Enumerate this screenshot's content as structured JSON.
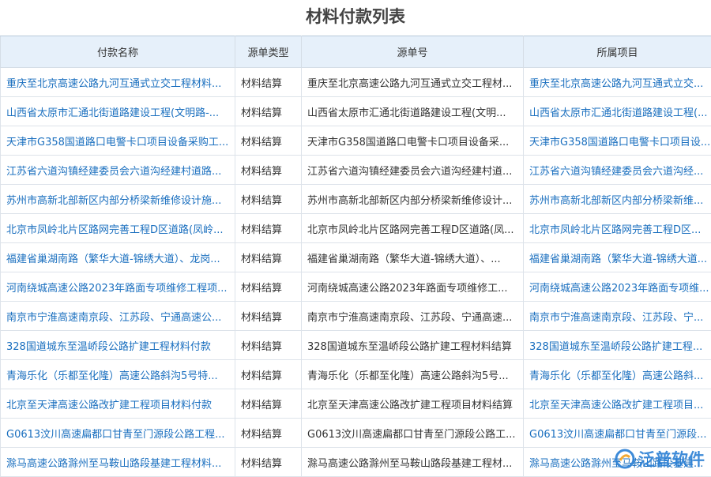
{
  "header": {
    "title": "材料付款列表"
  },
  "table": {
    "columns": [
      "付款名称",
      "源单类型",
      "源单号",
      "所属项目"
    ],
    "rows": [
      [
        "重庆至北京高速公路九河互通式立交工程材料...",
        "材料结算",
        "重庆至北京高速公路九河互通式立交工程材...",
        "重庆至北京高速公路九河互通式立交..."
      ],
      [
        "山西省太原市汇通北街道路建设工程(文明路-...",
        "材料结算",
        "山西省太原市汇通北街道路建设工程(文明...",
        "山西省太原市汇通北街道路建设工程(..."
      ],
      [
        "天津市G358国道路口电警卡口项目设备采购工...",
        "材料结算",
        "天津市G358国道路口电警卡口项目设备采...",
        "天津市G358国道路口电警卡口项目设..."
      ],
      [
        "江苏省六道沟镇经建委员会六道沟经建村道路...",
        "材料结算",
        "江苏省六道沟镇经建委员会六道沟经建村道...",
        "江苏省六道沟镇经建委员会六道沟经..."
      ],
      [
        "苏州市高新北部新区内部分桥梁新维修设计施...",
        "材料结算",
        "苏州市高新北部新区内部分桥梁新维修设计...",
        "苏州市高新北部新区内部分桥梁新维..."
      ],
      [
        "北京市凤岭北片区路网完善工程D区道路(凤岭...",
        "材料结算",
        "北京市凤岭北片区路网完善工程D区道路(凤...",
        "北京市凤岭北片区路网完善工程D区..."
      ],
      [
        "福建省巢湖南路（繁华大道-锦绣大道）、龙岗...",
        "材料结算",
        "福建省巢湖南路（繁华大道-锦绣大道）、...",
        "福建省巢湖南路（繁华大道-锦绣大道..."
      ],
      [
        "河南绕城高速公路2023年路面专项维修工程项...",
        "材料结算",
        "河南绕城高速公路2023年路面专项维修工...",
        "河南绕城高速公路2023年路面专项维..."
      ],
      [
        "南京市宁淮高速南京段、江苏段、宁通高速公...",
        "材料结算",
        "南京市宁淮高速南京段、江苏段、宁通高速...",
        "南京市宁淮高速南京段、江苏段、宁..."
      ],
      [
        "328国道城东至温峤段公路扩建工程材料付款",
        "材料结算",
        "328国道城东至温峤段公路扩建工程材料结算",
        "328国道城东至温峤段公路扩建工程..."
      ],
      [
        "青海乐化（乐都至化隆）高速公路斜沟5号特...",
        "材料结算",
        "青海乐化（乐都至化隆）高速公路斜沟5号...",
        "青海乐化（乐都至化隆）高速公路斜..."
      ],
      [
        "北京至天津高速公路改扩建工程项目材料付款",
        "材料结算",
        "北京至天津高速公路改扩建工程项目材料结算",
        "北京至天津高速公路改扩建工程项目..."
      ],
      [
        "G0613汶川高速扁都口甘青至门源段公路工程...",
        "材料结算",
        "G0613汶川高速扁都口甘青至门源段公路工...",
        "G0613汶川高速扁都口甘青至门源段..."
      ],
      [
        "滁马高速公路滁州至马鞍山路段基建工程材料...",
        "材料结算",
        "滁马高速公路滁州至马鞍山路段基建工程材...",
        "滁马高速公路滁州至马鞍山路段基建..."
      ]
    ]
  },
  "watermark": {
    "text": "泛普软件"
  }
}
